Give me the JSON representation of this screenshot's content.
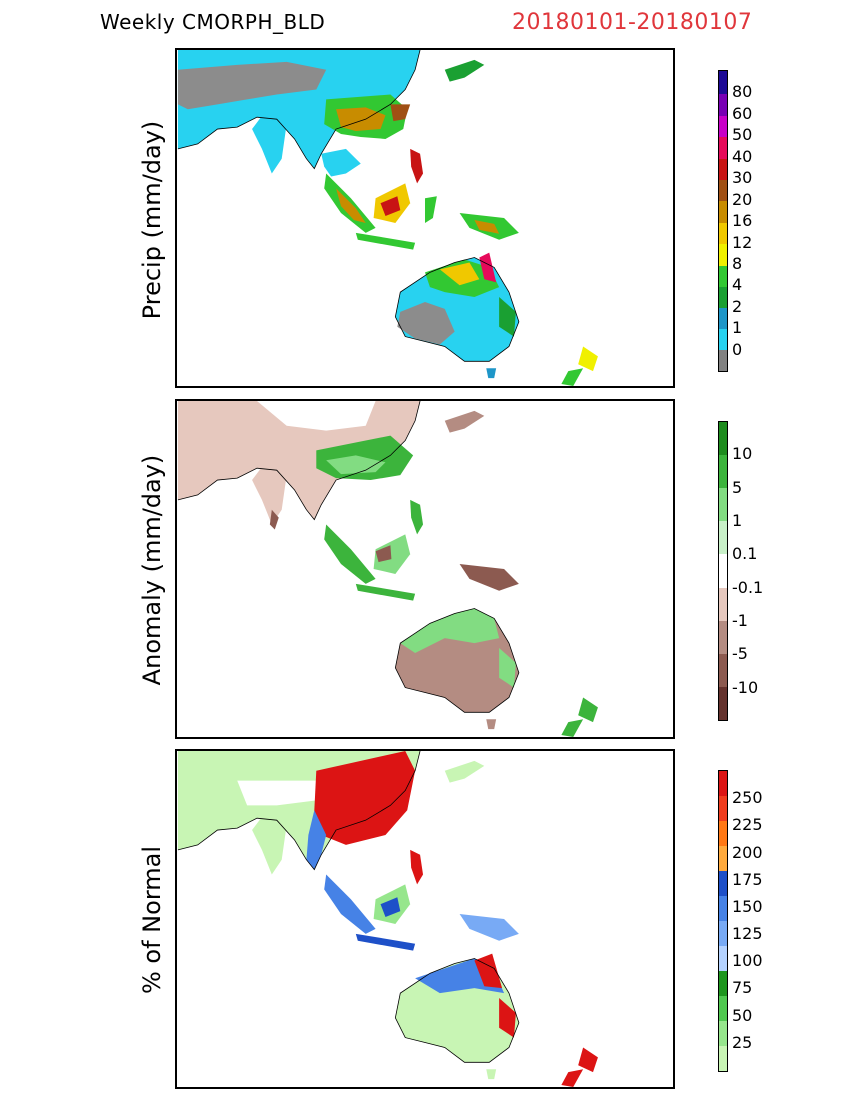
{
  "header": {
    "product": "Weekly CMORPH_BLD",
    "period": "20180101-20180107"
  },
  "colors": {
    "period_text": "#e0363b",
    "land_dry": "#8c8c8c",
    "ocean": "#ffffff"
  },
  "panels": [
    {
      "ylabel": "Precip (mm/day)",
      "legend": {
        "colors": [
          "#828282",
          "#28d2f0",
          "#1e96c8",
          "#1aa032",
          "#32c832",
          "#f0f000",
          "#f0c800",
          "#c88c00",
          "#a05014",
          "#c81414",
          "#e60a5a",
          "#c800c8",
          "#7800b4",
          "#1e0a96"
        ],
        "labels": [
          "0",
          "1",
          "2",
          "4",
          "8",
          "12",
          "16",
          "20",
          "30",
          "40",
          "50",
          "60",
          "80"
        ]
      }
    },
    {
      "ylabel": "Anomaly (mm/day)",
      "legend": {
        "colors": [
          "#64322d",
          "#8c5a50",
          "#b48c82",
          "#e6c8be",
          "#ffffff",
          "#c8f0c8",
          "#82dc82",
          "#3cb43c",
          "#1e8c1e"
        ],
        "labels": [
          "-10",
          "-5",
          "-1",
          "-0.1",
          "0.1",
          "1",
          "5",
          "10"
        ]
      }
    },
    {
      "ylabel": "% of Normal",
      "legend": {
        "colors": [
          "#c8f5b4",
          "#96e68c",
          "#50c850",
          "#1e961e",
          "#b4d2ff",
          "#78aaf5",
          "#4682e6",
          "#1e50c8",
          "#ffaa3c",
          "#ff7814",
          "#f03c1e",
          "#dc1414"
        ],
        "labels": [
          "25",
          "50",
          "75",
          "100",
          "125",
          "150",
          "175",
          "200",
          "225",
          "250"
        ]
      }
    }
  ]
}
